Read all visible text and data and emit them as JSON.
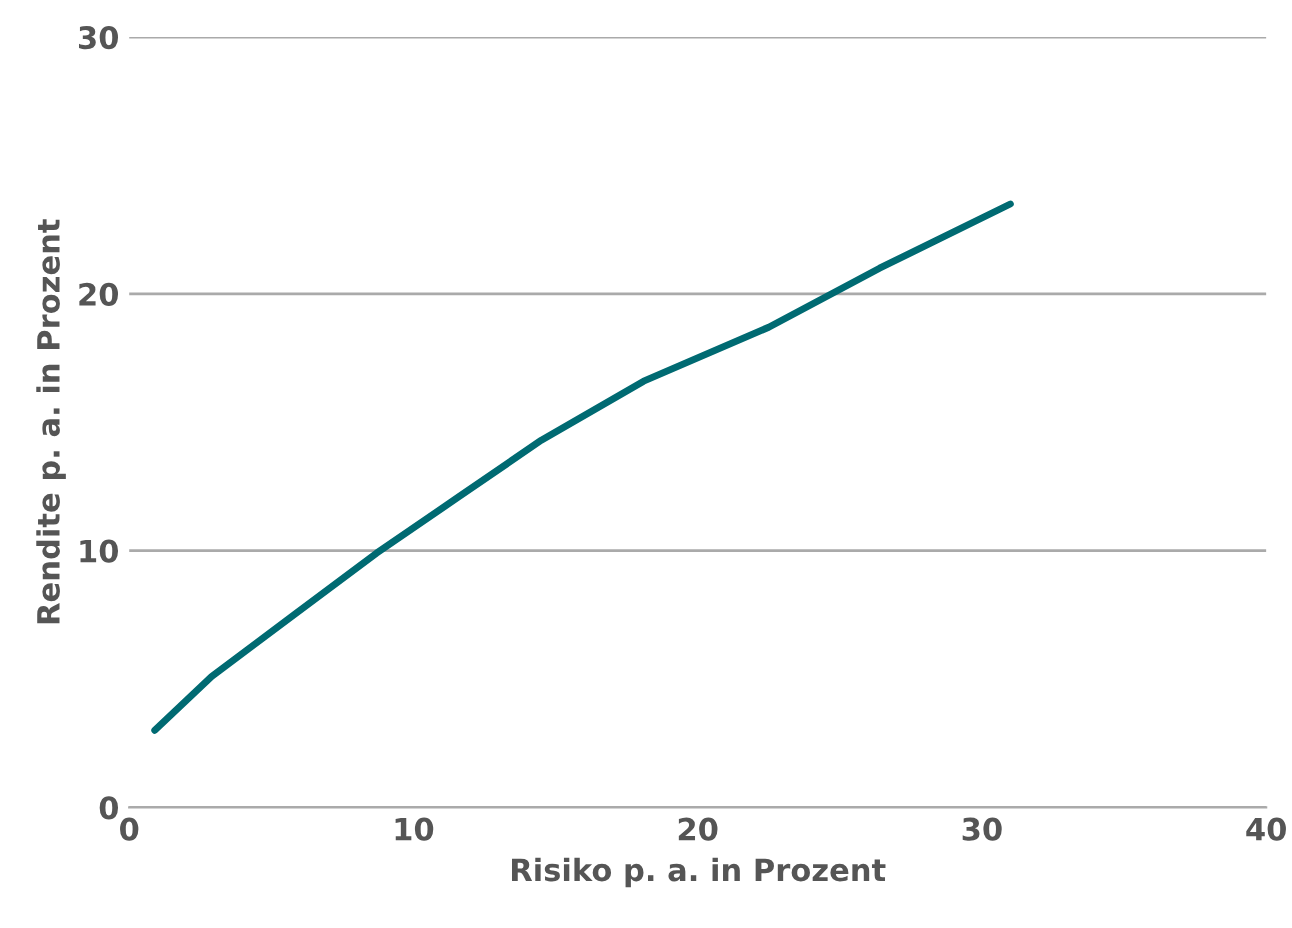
{
  "chart_data": {
    "type": "line",
    "xlabel": "Risiko p. a. in Prozent",
    "ylabel": "Rendite p. a. in Prozent",
    "x": [
      0.9,
      2.9,
      5.8,
      8.7,
      11.6,
      14.5,
      18.1,
      22.5,
      26.4,
      31.0
    ],
    "series": [
      {
        "color": "#006a72",
        "values": [
          3.0,
          5.1,
          7.5,
          9.9,
          12.1,
          14.3,
          16.6,
          18.7,
          21.0,
          23.5
        ]
      }
    ],
    "xlim": [
      0,
      40
    ],
    "xticks": [
      0,
      10,
      20,
      30,
      40
    ],
    "ylim": [
      0,
      30
    ],
    "yticks": [
      0,
      10,
      20,
      30
    ],
    "grid": "y",
    "marker": "none",
    "line_style": "solid"
  }
}
